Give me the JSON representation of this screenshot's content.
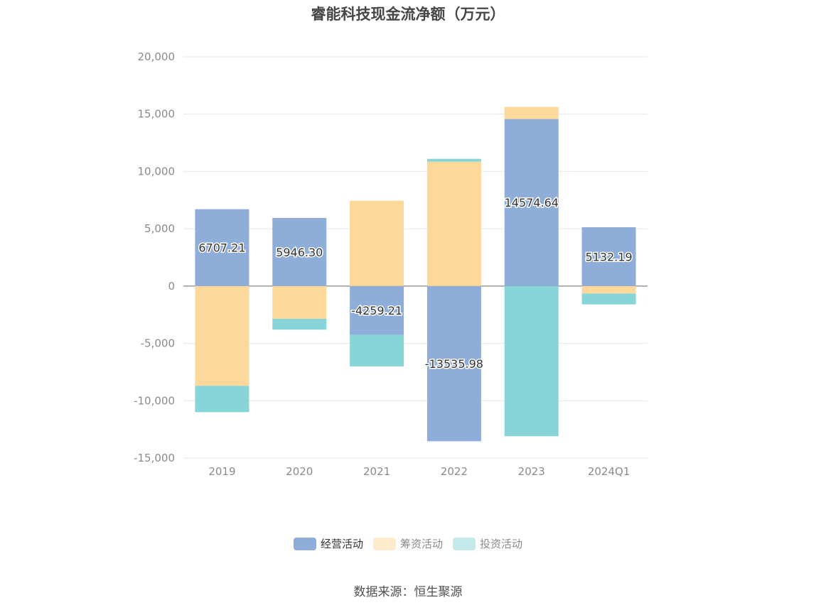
{
  "title": "睿能科技现金流净额（万元）",
  "source": "数据来源：恒生聚源",
  "chart_data": {
    "type": "bar",
    "stacked": true,
    "title": "睿能科技现金流净额（万元）",
    "categories": [
      "2019",
      "2020",
      "2021",
      "2022",
      "2023",
      "2024Q1"
    ],
    "ylim": [
      -15000,
      20000
    ],
    "yticks": [
      20000,
      15000,
      10000,
      5000,
      0,
      -5000,
      -10000,
      -15000
    ],
    "ytick_labels": [
      "20,000",
      "15,000",
      "10,000",
      "5,000",
      "0",
      "-5,000",
      "-10,000",
      "-15,000"
    ],
    "grid": true,
    "legend_position": "bottom",
    "series": [
      {
        "name": "经营活动",
        "color": "#8eadd9",
        "values": [
          6707.21,
          5946.3,
          -4259.21,
          -13535.98,
          14574.64,
          5132.19
        ],
        "labels": [
          "6707.21",
          "5946.30",
          "-4259.21",
          "-13535.98",
          "14574.64",
          "5132.19"
        ]
      },
      {
        "name": "筹资活动",
        "color": "#fdd89b",
        "values": [
          -8700,
          -2850,
          7450,
          10850,
          1050,
          -650
        ],
        "labels": []
      },
      {
        "name": "投资活动",
        "color": "#88d5d9",
        "values": [
          -2300,
          -950,
          -2750,
          250,
          -13100,
          -950
        ],
        "labels": []
      }
    ]
  }
}
